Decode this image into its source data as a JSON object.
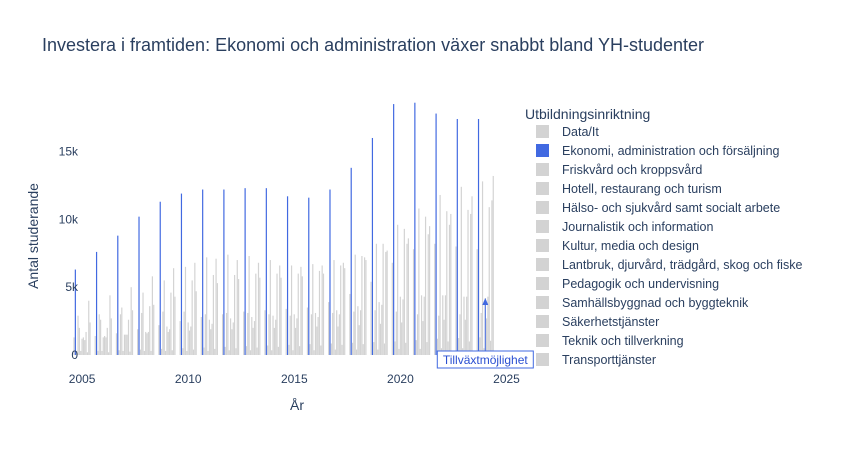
{
  "chart_data": {
    "type": "bar",
    "title": "Investera i framtiden: Ekonomi och administration växer snabbt bland YH-studenter",
    "xlabel": "År",
    "ylabel": "Antal studerande",
    "xlim": [
      2004.9,
      2025.4
    ],
    "ylim": [
      0,
      18800
    ],
    "x_ticks": [
      2005,
      2010,
      2015,
      2020,
      2025
    ],
    "x_tick_labels": [
      "2005",
      "2010",
      "2015",
      "2020",
      "2025"
    ],
    "y_ticks": [
      0,
      5000,
      10000,
      15000
    ],
    "y_tick_labels": [
      "0",
      "5k",
      "10k",
      "15k"
    ],
    "grid": false,
    "legend": {
      "title": "Utbildningsinriktning",
      "position": "right"
    },
    "highlight_color": "#4169e1",
    "muted_color": "#d3d3d3",
    "years": [
      2005,
      2006,
      2007,
      2008,
      2009,
      2010,
      2011,
      2012,
      2013,
      2014,
      2015,
      2016,
      2017,
      2018,
      2019,
      2020,
      2021,
      2022,
      2023,
      2024
    ],
    "series": [
      {
        "name": "Data/It",
        "highlight": false,
        "values": [
          1300,
          1400,
          1600,
          1900,
          2200,
          2500,
          2800,
          3000,
          3200,
          3300,
          3400,
          3500,
          3900,
          4500,
          5400,
          6800,
          7800,
          8200,
          8000,
          7800
        ]
      },
      {
        "name": "Ekonomi, administration och försäljning",
        "highlight": true,
        "values": [
          6300,
          7600,
          8800,
          10200,
          11300,
          11900,
          12200,
          12200,
          12300,
          12300,
          11700,
          11600,
          12200,
          13800,
          16000,
          18500,
          18600,
          17800,
          17400,
          17400
        ]
      },
      {
        "name": "Friskvård och kroppsvård",
        "highlight": false,
        "values": [
          300,
          300,
          350,
          400,
          450,
          500,
          550,
          600,
          650,
          700,
          750,
          800,
          850,
          900,
          950,
          1000,
          1100,
          1200,
          1250,
          1300
        ]
      },
      {
        "name": "Hotell, restaurang och turism",
        "highlight": false,
        "values": [
          2900,
          3000,
          3000,
          3100,
          3200,
          3200,
          3000,
          3100,
          3100,
          3000,
          2900,
          3000,
          3100,
          3200,
          3300,
          3200,
          3000,
          2900,
          3000,
          3100
        ]
      },
      {
        "name": "Hälso- och sjukvård samt socialt arbete",
        "highlight": false,
        "values": [
          2000,
          2600,
          3500,
          4600,
          5500,
          6500,
          7200,
          7400,
          7300,
          7000,
          6600,
          6700,
          7000,
          7400,
          8200,
          9600,
          10800,
          11800,
          12400,
          12800
        ]
      },
      {
        "name": "Journalistik och information",
        "highlight": false,
        "values": [
          300,
          300,
          300,
          300,
          300,
          300,
          300,
          350,
          350,
          350,
          350,
          350,
          400,
          400,
          400,
          450,
          450,
          500,
          500,
          500
        ]
      },
      {
        "name": "Kultur, media och design",
        "highlight": false,
        "values": [
          1200,
          1300,
          1500,
          1700,
          2100,
          2400,
          2600,
          2700,
          2800,
          2900,
          3000,
          3100,
          3300,
          3600,
          3900,
          4300,
          4400,
          4400,
          4300,
          4200
        ]
      },
      {
        "name": "Lantbruk, djurvård, trädgård, skog och fiske",
        "highlight": false,
        "values": [
          1300,
          1400,
          1500,
          1600,
          1700,
          1800,
          1900,
          1900,
          2000,
          2000,
          2000,
          2100,
          2100,
          2200,
          2300,
          2400,
          2500,
          2600,
          2600,
          2700
        ]
      },
      {
        "name": "Pedagogik och undervisning",
        "highlight": false,
        "values": [
          1100,
          1300,
          1500,
          1700,
          1900,
          2100,
          2300,
          2400,
          2500,
          2600,
          2700,
          2800,
          3000,
          3300,
          3700,
          4100,
          4300,
          4400,
          4300,
          4300
        ]
      },
      {
        "name": "Samhällsbyggnad och byggteknik",
        "highlight": false,
        "values": [
          1700,
          2000,
          2600,
          3600,
          4600,
          5500,
          5900,
          5900,
          6000,
          6000,
          6000,
          6200,
          6600,
          7300,
          8200,
          9300,
          10200,
          10600,
          10700,
          10900
        ]
      },
      {
        "name": "Säkerhetstjänster",
        "highlight": false,
        "values": [
          200,
          200,
          250,
          300,
          350,
          400,
          450,
          500,
          550,
          600,
          650,
          700,
          750,
          800,
          850,
          900,
          950,
          1000,
          1000,
          1050
        ]
      },
      {
        "name": "Teknik och tillverkning",
        "highlight": false,
        "values": [
          4000,
          4400,
          5000,
          5800,
          6400,
          6800,
          7100,
          7000,
          6800,
          6600,
          6500,
          6600,
          6800,
          7200,
          7600,
          8200,
          8900,
          9600,
          10400,
          11400
        ]
      },
      {
        "name": "Transporttjänster",
        "highlight": false,
        "values": [
          2400,
          2700,
          3300,
          3700,
          4300,
          4700,
          5300,
          5600,
          5700,
          5700,
          5800,
          6000,
          6400,
          7000,
          7700,
          8600,
          9500,
          10400,
          11700,
          13200
        ]
      }
    ],
    "annotation": {
      "text": "Tillväxtmöjlighet",
      "x": 2024,
      "y": 4200
    }
  }
}
